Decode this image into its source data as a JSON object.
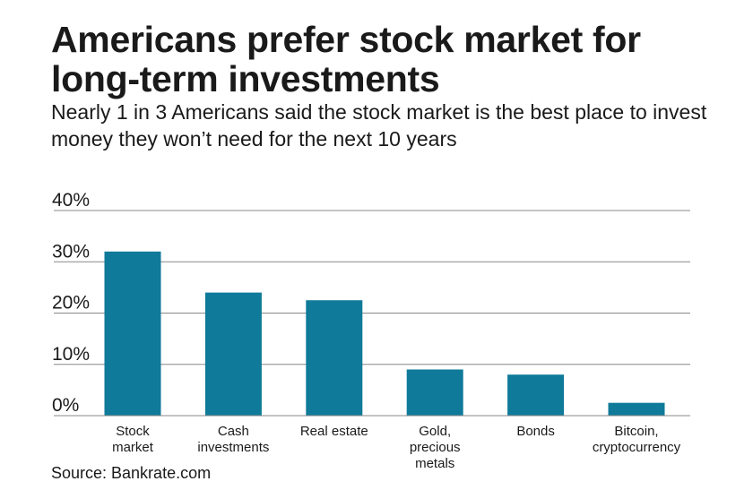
{
  "title": "Americans prefer stock market for long-term investments",
  "subtitle": "Nearly 1 in 3 Americans said the stock market is the best place to invest money they won’t need for the next 10 years",
  "source": "Source: Bankrate.com",
  "colors": {
    "bar": "#0f7a99",
    "grid": "#888888",
    "text": "#1a1a1a"
  },
  "chart_data": {
    "type": "bar",
    "categories": [
      [
        "Stock",
        "market"
      ],
      [
        "Cash",
        "investments"
      ],
      [
        "Real estate"
      ],
      [
        "Gold,",
        "precious",
        "metals"
      ],
      [
        "Bonds"
      ],
      [
        "Bitcoin,",
        "cryptocurrency"
      ]
    ],
    "values": [
      32,
      24,
      22.5,
      9,
      8,
      2.5
    ],
    "ylim": [
      0,
      40
    ],
    "yticks": [
      0,
      10,
      20,
      30,
      40
    ],
    "ytick_labels": [
      "0%",
      "10%",
      "20%",
      "30%",
      "40%"
    ],
    "grid": true,
    "legend": "none"
  }
}
